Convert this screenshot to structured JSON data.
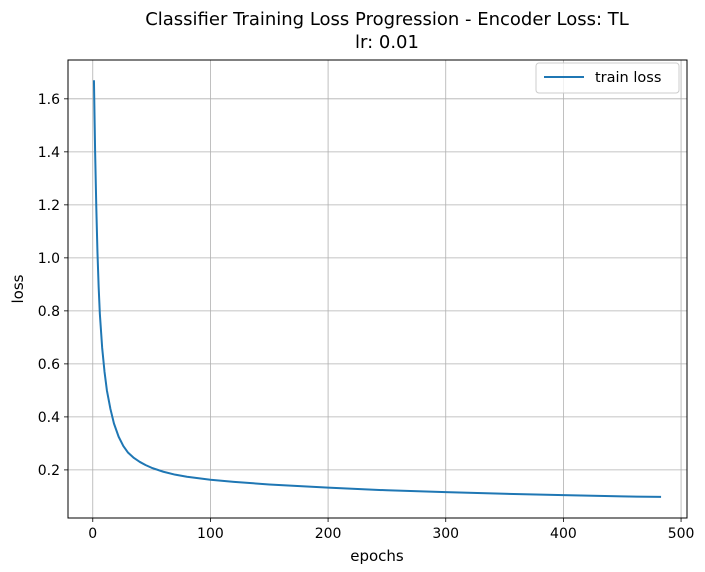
{
  "chart_data": {
    "type": "line",
    "title": "Classifier Training Loss Progression - Encoder Loss: TL",
    "subtitle": "lr: 0.01",
    "xlabel": "epochs",
    "ylabel": "loss",
    "xlim": [
      -21.05,
      505.05
    ],
    "ylim": [
      0.0185,
      1.7465
    ],
    "xticks": [
      0,
      100,
      200,
      300,
      400,
      500
    ],
    "xtick_labels": [
      "0",
      "100",
      "200",
      "300",
      "400",
      "500"
    ],
    "yticks": [
      0.2,
      0.4,
      0.6,
      0.8,
      1.0,
      1.2,
      1.4,
      1.6
    ],
    "ytick_labels": [
      "0.2",
      "0.4",
      "0.6",
      "0.8",
      "1.0",
      "1.2",
      "1.4",
      "1.6"
    ],
    "grid": true,
    "legend_position": "top-right",
    "series": [
      {
        "name": "train loss",
        "color": "#1f77b4",
        "x": [
          1,
          2,
          3,
          4,
          5,
          6,
          8,
          10,
          12,
          15,
          18,
          22,
          26,
          30,
          35,
          40,
          45,
          50,
          60,
          70,
          80,
          100,
          120,
          150,
          200,
          250,
          300,
          350,
          400,
          450,
          483
        ],
        "y": [
          1.67,
          1.4,
          1.19,
          1.02,
          0.89,
          0.79,
          0.66,
          0.57,
          0.5,
          0.43,
          0.375,
          0.325,
          0.29,
          0.265,
          0.245,
          0.23,
          0.218,
          0.208,
          0.193,
          0.182,
          0.174,
          0.163,
          0.155,
          0.145,
          0.133,
          0.123,
          0.116,
          0.11,
          0.105,
          0.1,
          0.098
        ]
      }
    ]
  }
}
